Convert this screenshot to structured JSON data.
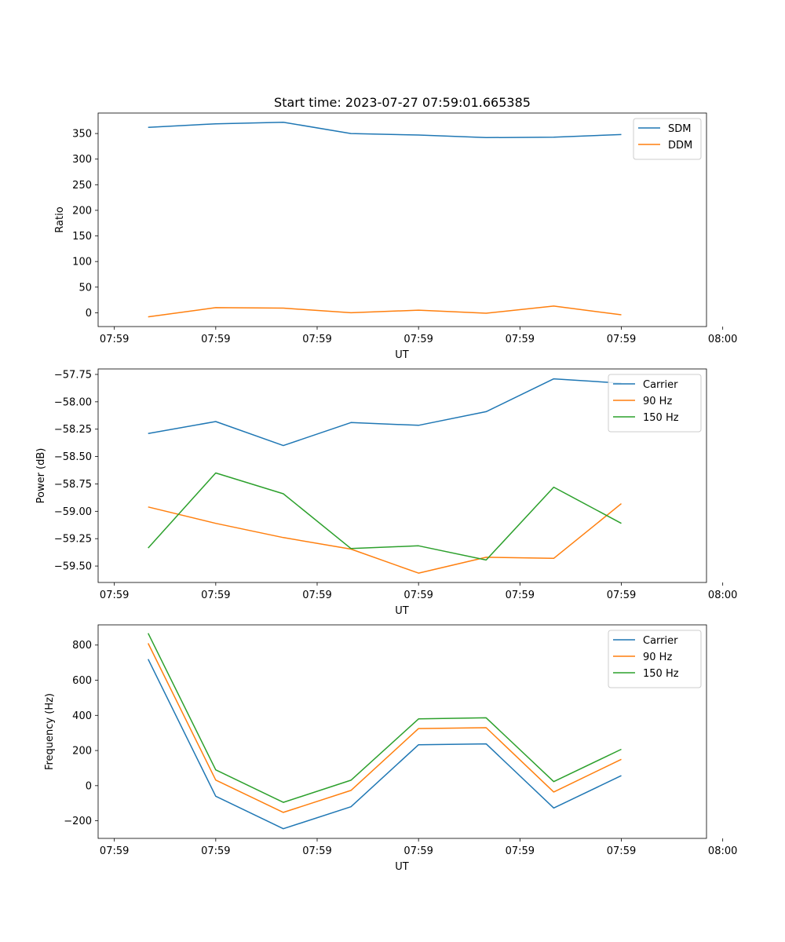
{
  "chart_data": [
    {
      "type": "line",
      "title": "Start time: 2023-07-27 07:59:01.665385",
      "xlabel": "UT",
      "ylabel": "Ratio",
      "x": [
        0,
        1,
        2,
        3,
        4,
        5,
        6,
        7
      ],
      "xlim": [
        -0.74,
        8.26
      ],
      "xticks": [
        -0.5,
        1.0,
        2.5,
        4.0,
        5.5,
        7.0,
        8.5
      ],
      "xtick_labels": [
        "07:59",
        "07:59",
        "07:59",
        "07:59",
        "07:59",
        "07:59",
        "08:00"
      ],
      "ylim": [
        -27,
        390
      ],
      "yticks": [
        0,
        50,
        100,
        150,
        200,
        250,
        300,
        350
      ],
      "ytick_labels": [
        "0",
        "50",
        "100",
        "150",
        "200",
        "250",
        "300",
        "350"
      ],
      "legend_position": "top-right",
      "series": [
        {
          "name": "SDM",
          "color": "#1f77b4",
          "values": [
            362,
            369,
            372,
            350,
            347,
            342,
            343,
            348
          ]
        },
        {
          "name": "DDM",
          "color": "#ff7f0e",
          "values": [
            -8,
            10,
            9,
            0,
            5,
            -1,
            13,
            -4
          ]
        }
      ]
    },
    {
      "type": "line",
      "title": "",
      "xlabel": "UT",
      "ylabel": "Power (dB)",
      "x": [
        0,
        1,
        2,
        3,
        4,
        5,
        6,
        7
      ],
      "xlim": [
        -0.74,
        8.26
      ],
      "xticks": [
        -0.5,
        1.0,
        2.5,
        4.0,
        5.5,
        7.0,
        8.5
      ],
      "xtick_labels": [
        "07:59",
        "07:59",
        "07:59",
        "07:59",
        "07:59",
        "07:59",
        "08:00"
      ],
      "ylim": [
        -59.65,
        -57.7
      ],
      "yticks": [
        -59.5,
        -59.25,
        -59.0,
        -58.75,
        -58.5,
        -58.25,
        -58.0,
        -57.75
      ],
      "ytick_labels": [
        "−59.50",
        "−59.25",
        "−59.00",
        "−58.75",
        "−58.50",
        "−58.25",
        "−58.00",
        "−57.75"
      ],
      "legend_position": "top-right",
      "series": [
        {
          "name": "Carrier",
          "color": "#1f77b4",
          "values": [
            -58.29,
            -58.18,
            -58.4,
            -58.19,
            -58.215,
            -58.09,
            -57.79,
            -57.83
          ]
        },
        {
          "name": "90 Hz",
          "color": "#ff7f0e",
          "values": [
            -58.96,
            -59.11,
            -59.24,
            -59.345,
            -59.565,
            -59.42,
            -59.43,
            -58.93
          ]
        },
        {
          "name": "150 Hz",
          "color": "#2ca02c",
          "values": [
            -59.335,
            -58.65,
            -58.84,
            -59.34,
            -59.315,
            -59.445,
            -58.78,
            -59.11
          ]
        }
      ]
    },
    {
      "type": "line",
      "title": "",
      "xlabel": "UT",
      "ylabel": "Frequency (Hz)",
      "x": [
        0,
        1,
        2,
        3,
        4,
        5,
        6,
        7
      ],
      "xlim": [
        -0.74,
        8.26
      ],
      "xticks": [
        -0.5,
        1.0,
        2.5,
        4.0,
        5.5,
        7.0,
        8.5
      ],
      "xtick_labels": [
        "07:59",
        "07:59",
        "07:59",
        "07:59",
        "07:59",
        "07:59",
        "08:00"
      ],
      "ylim": [
        -300,
        915
      ],
      "yticks": [
        -200,
        0,
        200,
        400,
        600,
        800
      ],
      "ytick_labels": [
        "−200",
        "0",
        "200",
        "400",
        "600",
        "800"
      ],
      "legend_position": "top-right",
      "series": [
        {
          "name": "Carrier",
          "color": "#1f77b4",
          "values": [
            720,
            -60,
            -245,
            -120,
            233,
            238,
            -127,
            57
          ]
        },
        {
          "name": "90 Hz",
          "color": "#ff7f0e",
          "values": [
            810,
            32,
            -152,
            -27,
            325,
            330,
            -36,
            150
          ]
        },
        {
          "name": "150 Hz",
          "color": "#2ca02c",
          "values": [
            867,
            90,
            -95,
            31,
            380,
            386,
            23,
            207
          ]
        }
      ]
    }
  ]
}
